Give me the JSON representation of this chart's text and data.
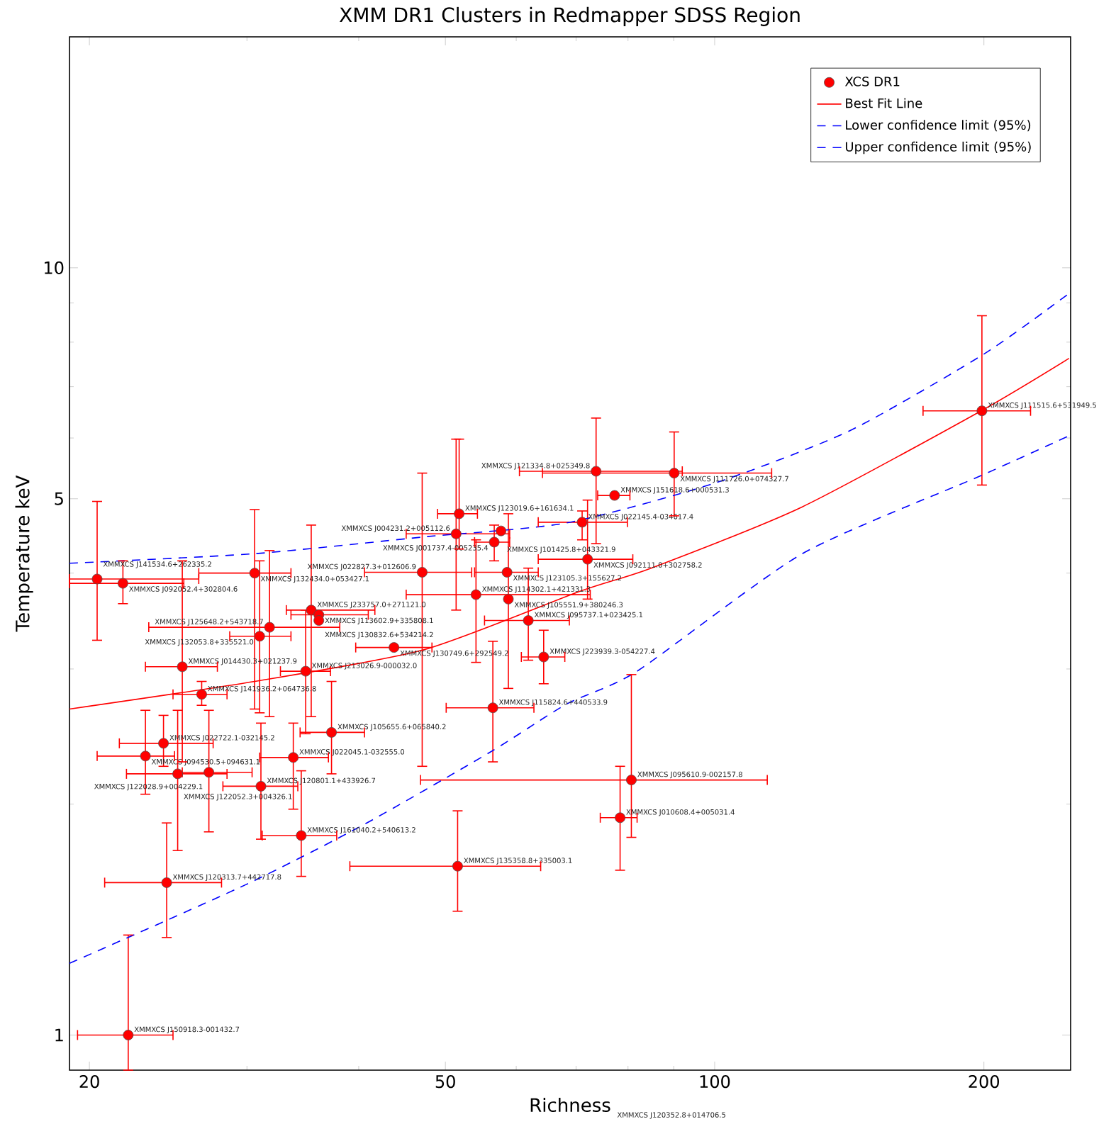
{
  "chart_data": {
    "type": "scatter",
    "title": "XMM DR1 Clusters in Redmapper SDSS Region",
    "xlabel": "Richness",
    "ylabel": "Temperature keV",
    "log": "xy",
    "legend": "top right",
    "xlim": [
      19,
      250
    ],
    "ylim": [
      0.9,
      20
    ],
    "xticks": [
      20,
      50,
      100,
      200,
      {
        "value": 30,
        "label": null
      },
      {
        "value": 40,
        "label": null
      },
      {
        "value": 60,
        "label": null
      },
      {
        "value": 70,
        "label": null
      },
      {
        "value": 80,
        "label": null
      },
      {
        "value": 90,
        "label": null
      }
    ],
    "yticks": [
      1,
      5,
      10,
      {
        "value": 2,
        "label": null
      },
      {
        "value": 3,
        "label": null
      },
      {
        "value": 4,
        "label": null
      },
      {
        "value": 6,
        "label": null
      },
      {
        "value": 7,
        "label": null
      },
      {
        "value": 8,
        "label": null
      },
      {
        "value": 9,
        "label": null
      }
    ],
    "series": [
      {
        "name": "XCS DR1",
        "type": "scatter",
        "color": "#ff0000",
        "marker": "circle",
        "x": [
          20.4,
          21.8,
          30.6,
          35.4,
          36.1,
          36.1,
          31.8,
          31.0,
          25.4,
          34.9,
          26.7,
          37.3,
          24.2,
          23.1,
          33.8,
          25.1,
          27.2,
          31.1,
          34.5,
          24.4,
          22.1,
          51.6,
          43.8,
          47.1,
          58.6,
          51.8,
          51.4,
          57.7,
          56.7,
          71.1,
          73.7,
          90.1,
          77.3,
          72.1,
          54.1,
          58.8,
          61.9,
          64.4,
          56.5,
          80.7,
          78.4,
          199
        ],
        "values": [
          3.93,
          3.88,
          4.0,
          3.58,
          3.53,
          3.47,
          3.4,
          3.31,
          3.02,
          2.98,
          2.78,
          2.48,
          2.4,
          2.31,
          2.3,
          2.19,
          2.2,
          2.11,
          1.82,
          1.58,
          1.0,
          1.66,
          3.2,
          4.01,
          4.01,
          4.78,
          4.5,
          4.54,
          4.39,
          4.66,
          5.43,
          5.4,
          5.05,
          4.17,
          3.75,
          3.7,
          3.47,
          3.11,
          2.67,
          2.15,
          1.92,
          6.51
        ],
        "errors": [
          [
            3.27,
            4.96
          ],
          [
            3.65,
            4.15
          ],
          [
            2.66,
            4.84
          ],
          [
            2.6,
            4.62
          ],
          null,
          null,
          [
            2.6,
            4.28
          ],
          [
            2.63,
            4.15
          ],
          [
            2.27,
            4.15
          ],
          [
            2.47,
            3.58
          ],
          [
            2.69,
            2.89
          ],
          [
            2.19,
            2.89
          ],
          [
            2.24,
            2.61
          ],
          [
            2.06,
            2.65
          ],
          [
            1.97,
            2.55
          ],
          [
            1.74,
            2.65
          ],
          [
            1.84,
            2.65
          ],
          [
            1.8,
            2.55
          ],
          [
            1.61,
            2.21
          ],
          [
            1.34,
            1.89
          ],
          [
            0.9,
            1.35
          ],
          [
            1.45,
            1.96
          ],
          null,
          [
            2.24,
            5.4
          ],
          null,
          [
            4.3,
            5.98
          ],
          [
            3.58,
            5.98
          ],
          null,
          [
            4.15,
            4.62
          ],
          [
            4.42,
            4.82
          ],
          [
            4.37,
            6.37
          ],
          [
            4.75,
            6.11
          ],
          null,
          [
            3.7,
            4.98
          ],
          [
            3.06,
            4.42
          ],
          [
            2.83,
            4.78
          ],
          [
            3.08,
            4.06
          ],
          [
            2.87,
            3.37
          ],
          [
            2.27,
            3.26
          ],
          [
            1.81,
            2.95
          ],
          [
            1.64,
            2.24
          ],
          [
            5.21,
            8.66
          ]
        ],
        "xerrors": [
          [
            19.0,
            26.5
          ],
          [
            19.0,
            25.5
          ],
          [
            26.5,
            33.6
          ],
          [
            33.2,
            41.7
          ],
          [
            33.6,
            41.0
          ],
          null,
          [
            23.3,
            38.1
          ],
          [
            28.7,
            33.6
          ],
          [
            23.1,
            27.8
          ],
          [
            32.7,
            37.2
          ],
          [
            24.8,
            28.5
          ],
          [
            34.4,
            40.6
          ],
          [
            21.6,
            27.5
          ],
          [
            20.4,
            24.9
          ],
          [
            31.0,
            37.0
          ],
          [
            22.0,
            28.5
          ],
          [
            25.4,
            30.4
          ],
          [
            28.2,
            34.2
          ],
          [
            31.2,
            37.8
          ],
          [
            20.8,
            28.1
          ],
          [
            19.4,
            24.8
          ],
          [
            39.1,
            63.9
          ],
          [
            39.7,
            48.3
          ],
          [
            40.6,
            53.5
          ],
          [
            53.9,
            63.5
          ],
          [
            49.0,
            54.3
          ],
          [
            45.2,
            59.0
          ],
          null,
          [
            53.9,
            59.0
          ],
          [
            63.5,
            79.9
          ],
          [
            60.5,
            92.0
          ],
          [
            64.2,
            115.8
          ],
          [
            74.0,
            80.4
          ],
          [
            63.5,
            81.0
          ],
          [
            45.2,
            72.6
          ],
          null,
          [
            55.3,
            68.8
          ],
          [
            60.8,
            68.0
          ],
          [
            50.1,
            62.8
          ],
          [
            46.9,
            114.5
          ],
          [
            74.5,
            81.9
          ],
          [
            171,
            225.5
          ]
        ]
      },
      {
        "name": "Best Fit Line",
        "type": "line",
        "color": "#ff0000",
        "line_style": "solid",
        "x": [
          19,
          30.6,
          47.4,
          70.8,
          84.9,
          125.3,
          198.6,
          249
        ],
        "values": [
          2.66,
          2.89,
          3.18,
          3.79,
          4.06,
          4.88,
          6.51,
          7.62
        ]
      },
      {
        "name": "Lower confidence limit (95%)",
        "type": "line",
        "color": "#0000ff",
        "line_style": "dashed",
        "x": [
          19,
          29.9,
          40.5,
          56.2,
          68.3,
          81.9,
          125.3,
          198.6,
          249
        ],
        "values": [
          1.24,
          1.57,
          1.88,
          2.34,
          2.7,
          2.98,
          4.24,
          5.36,
          6.04
        ]
      },
      {
        "name": "Upper confidence limit (95%)",
        "type": "line",
        "color": "#0000ff",
        "line_style": "dashed",
        "x": [
          19,
          30.6,
          47.4,
          68.3,
          100,
          141.5,
          200,
          249
        ],
        "values": [
          4.12,
          4.24,
          4.46,
          4.65,
          5.24,
          6.13,
          7.72,
          9.26
        ]
      }
    ],
    "annotations": [
      {
        "text": "XMMXCS J141534.6+262335.2",
        "x": 20.4,
        "y": 3.93
      },
      {
        "text": "XMMXCS J092052.4+302804.6",
        "x": 21.8,
        "y": 3.88
      },
      {
        "text": "XMMXCS J132434.0+053427.1",
        "x": 30.6,
        "y": 4.0
      },
      {
        "text": "XMMXCS J233757.0+271121.0",
        "x": 35.4,
        "y": 3.58
      },
      {
        "text": "XMMXCS J113602.9+335808.1",
        "x": 36.1,
        "y": 3.53
      },
      {
        "text": "XMMXCS J130832.6+534214.2",
        "x": 36.1,
        "y": 3.47
      },
      {
        "text": "XMMXCS J125648.2+543718.7",
        "x": 31.8,
        "y": 3.4
      },
      {
        "text": "XMMXCS J132053.8+335521.0",
        "x": 31.0,
        "y": 3.31
      },
      {
        "text": "XMMXCS J014430.3+021237.9",
        "x": 25.4,
        "y": 3.02
      },
      {
        "text": "XMMXCS J213026.9-000032.0",
        "x": 34.9,
        "y": 2.98
      },
      {
        "text": "XMMXCS J141936.2+064736.8",
        "x": 26.7,
        "y": 2.78
      },
      {
        "text": "XMMXCS J105655.6+065840.2",
        "x": 37.3,
        "y": 2.48
      },
      {
        "text": "XMMXCS J022722.1-032145.2",
        "x": 24.2,
        "y": 2.4
      },
      {
        "text": "XMMXCS J094530.5+094631.1",
        "x": 23.1,
        "y": 2.31
      },
      {
        "text": "XMMXCS J022045.1-032555.0",
        "x": 33.8,
        "y": 2.3
      },
      {
        "text": "XMMXCS J122052.3+004326.1",
        "x": 25.1,
        "y": 2.19
      },
      {
        "text": "XMMXCS J122028.9+004229.1",
        "x": 27.2,
        "y": 2.2
      },
      {
        "text": "XMMXCS J120801.1+433926.7",
        "x": 31.1,
        "y": 2.11
      },
      {
        "text": "XMMXCS J161040.2+540613.2",
        "x": 34.5,
        "y": 1.82
      },
      {
        "text": "XMMXCS J120313.7+442717.8",
        "x": 24.4,
        "y": 1.58
      },
      {
        "text": "XMMXCS J150918.3-001432.7",
        "x": 22.1,
        "y": 1.0
      },
      {
        "text": "XMMXCS J135358.8+335003.1",
        "x": 51.6,
        "y": 1.66
      },
      {
        "text": "XMMXCS J130749.6+292549.2",
        "x": 43.8,
        "y": 3.2
      },
      {
        "text": "XMMXCS J022827.3+012606.9",
        "x": 47.1,
        "y": 4.01
      },
      {
        "text": "XMMXCS J123105.3+155627.2",
        "x": 58.6,
        "y": 4.01
      },
      {
        "text": "XMMXCS J123019.6+161634.1",
        "x": 51.8,
        "y": 4.78
      },
      {
        "text": "XMMXCS J004231.2+005112.6",
        "x": 51.4,
        "y": 4.5
      },
      {
        "text": "XMMXCS J101425.8+043321.9",
        "x": 57.7,
        "y": 4.54
      },
      {
        "text": "XMMXCS J001737.4-005235.4",
        "x": 56.7,
        "y": 4.39
      },
      {
        "text": "XMMXCS J022145.4-034617.4",
        "x": 71.1,
        "y": 4.66
      },
      {
        "text": "XMMXCS J121334.8+025349.8",
        "x": 73.7,
        "y": 5.43
      },
      {
        "text": "XMMXCS J111726.0+074327.7",
        "x": 90.1,
        "y": 5.4
      },
      {
        "text": "XMMXCS J151618.6+000531.3",
        "x": 77.3,
        "y": 5.05
      },
      {
        "text": "XMMXCS J092111.0+302758.2",
        "x": 72.1,
        "y": 4.17
      },
      {
        "text": "XMMXCS J114302.1+421331.3",
        "x": 54.1,
        "y": 3.75
      },
      {
        "text": "XMMXCS J105551.9+380246.3",
        "x": 58.8,
        "y": 3.7
      },
      {
        "text": "XMMXCS J095737.1+023425.1",
        "x": 61.9,
        "y": 3.47
      },
      {
        "text": "XMMXCS J223939.3-054227.4",
        "x": 64.4,
        "y": 3.11
      },
      {
        "text": "XMMXCS J115824.6+440533.9",
        "x": 56.5,
        "y": 2.67
      },
      {
        "text": "XMMXCS J095610.9-002157.8",
        "x": 80.7,
        "y": 2.15
      },
      {
        "text": "XMMXCS J010608.4+005031.4",
        "x": 78.4,
        "y": 1.92
      },
      {
        "text": "XMMXCS J111515.6+531949.5",
        "x": 199,
        "y": 6.51
      },
      "XMMXCS J120352.8+014706.5"
    ]
  }
}
